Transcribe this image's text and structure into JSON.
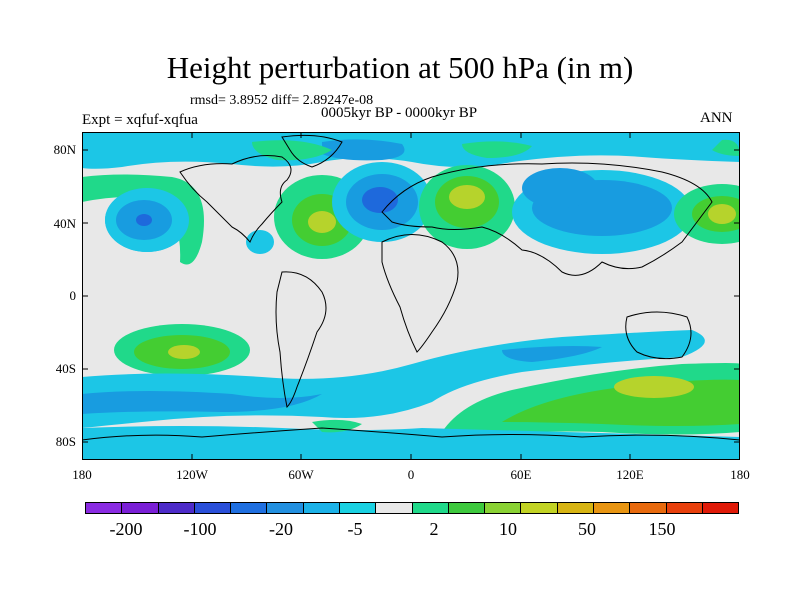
{
  "header": {
    "title": "Height perturbation at 500 hPa (in m)",
    "stats": "rmsd= 3.8952 diff= 2.89247e-08",
    "experiment": "Expt = xqfuf-xqfua",
    "period": "0005kyr BP - 0000kyr BP",
    "season": "ANN"
  },
  "axes": {
    "lat_ticks": [
      "80N",
      "40N",
      "0",
      "40S",
      "80S"
    ],
    "lon_ticks": [
      "180",
      "120W",
      "60W",
      "0",
      "60E",
      "120E",
      "180"
    ]
  },
  "colorbar": {
    "colors": [
      "#8a2be2",
      "#7a1fd6",
      "#4d2bc9",
      "#2a4fd9",
      "#1f6fe0",
      "#2290e0",
      "#1cb2e8",
      "#1ad1e2",
      "#e8e8e8",
      "#20d98a",
      "#3ec93e",
      "#8ad234",
      "#c2d324",
      "#d7b413",
      "#e89512",
      "#e86a0e",
      "#e8400c",
      "#e01a08"
    ],
    "labels": [
      "-200",
      "-100",
      "-20",
      "-5",
      "2",
      "10",
      "50",
      "150"
    ]
  },
  "field": {
    "colors": {
      "neutral": "#e8e8e8",
      "blue_light": "#1cc6e6",
      "blue_mid": "#189ce0",
      "blue_dark": "#1e69dc",
      "green": "#20d98a",
      "lime": "#44cd32",
      "yellow_green": "#b6d32c"
    }
  }
}
